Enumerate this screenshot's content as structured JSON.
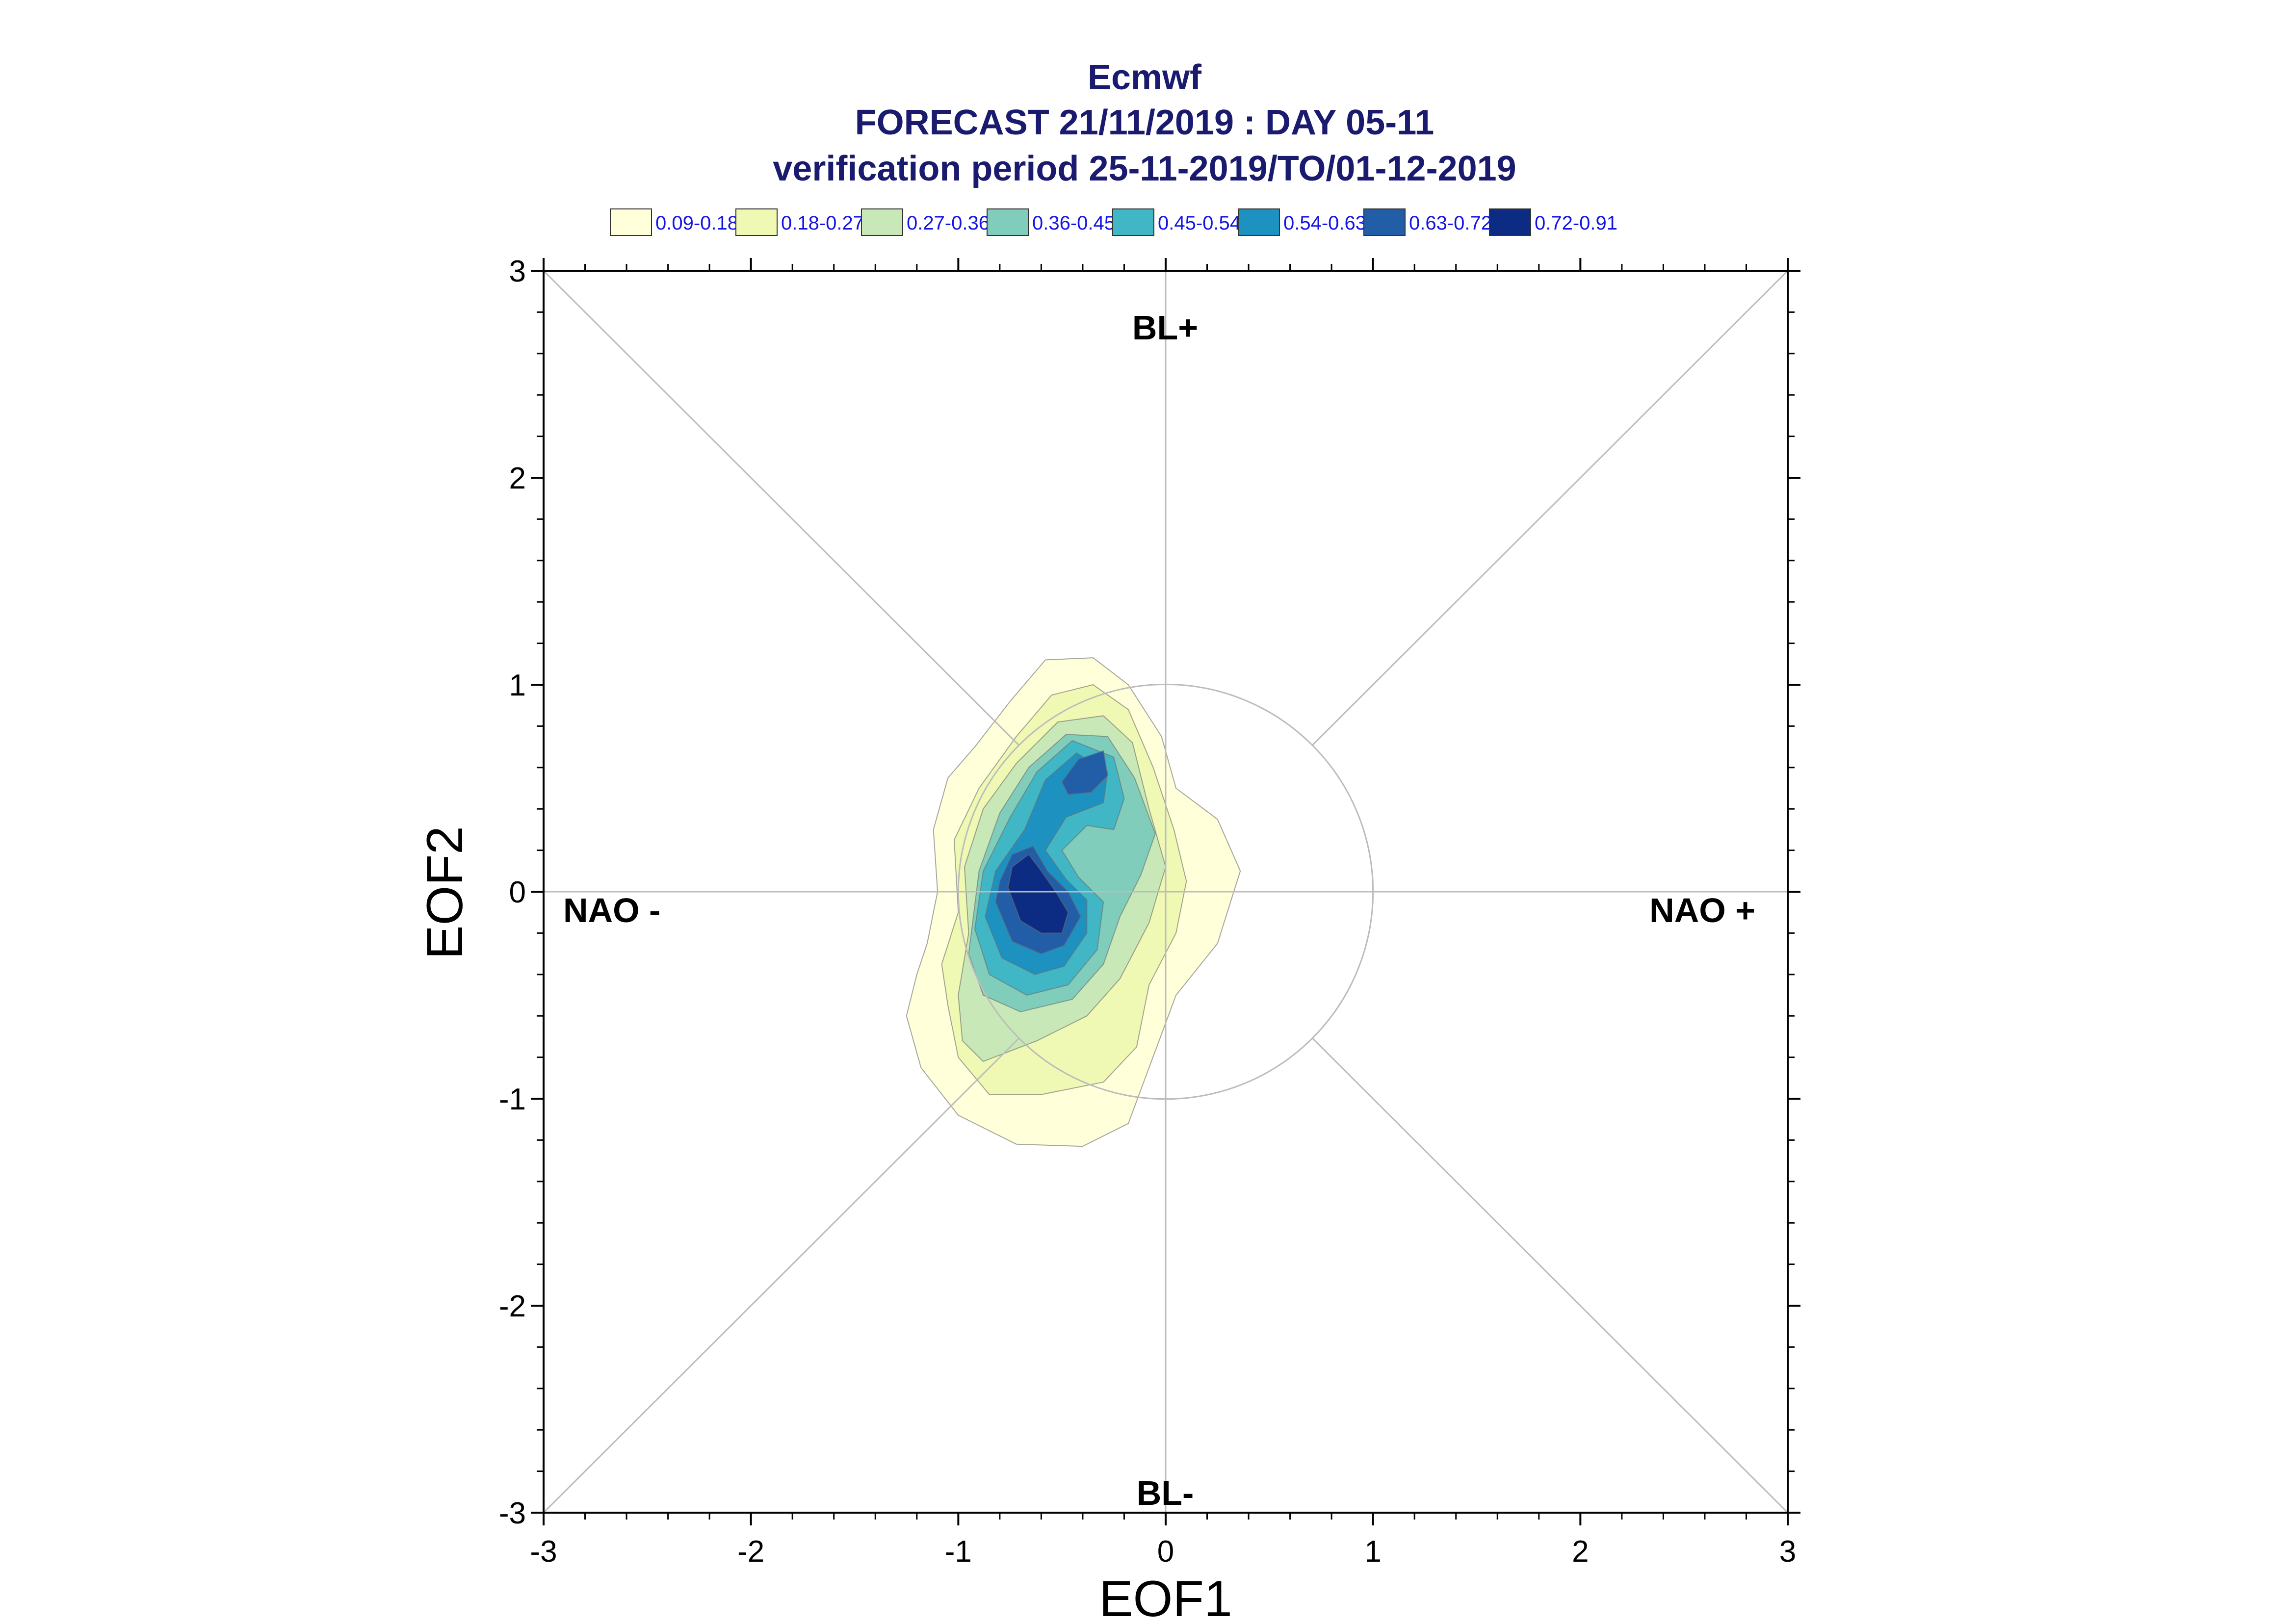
{
  "chart_data": {
    "type": "contour",
    "title": "Ecmwf",
    "subtitle": [
      "FORECAST 21/11/2019 : DAY 05-11",
      "verification period 25-11-2019/TO/01-12-2019"
    ],
    "xlabel": "EOF1",
    "ylabel": "EOF2",
    "xlim": [
      -3,
      3
    ],
    "ylim": [
      -3,
      3
    ],
    "xticks": [
      "-3",
      "-2",
      "-1",
      "0",
      "1",
      "2",
      "3"
    ],
    "yticks": [
      "-3",
      "-2",
      "-1",
      "0",
      "1",
      "2",
      "3"
    ],
    "grid": false,
    "reference_circle_radius": 1,
    "quadrant_labels": {
      "top": "BL+",
      "bottom": "BL-",
      "left": "NAO -",
      "right": "NAO +"
    },
    "legend_position": "top",
    "legend": [
      {
        "label": "0.09-0.18",
        "color": "#ffffd9"
      },
      {
        "label": "0.18-0.27",
        "color": "#eff9b3"
      },
      {
        "label": "0.27-0.36",
        "color": "#c8e9b7"
      },
      {
        "label": "0.36-0.45",
        "color": "#80cdbb"
      },
      {
        "label": "0.45-0.54",
        "color": "#41b6c4"
      },
      {
        "label": "0.54-0.63",
        "color": "#1d91c0"
      },
      {
        "label": "0.63-0.72",
        "color": "#225ea8"
      },
      {
        "label": "0.72-0.91",
        "color": "#0c2c84"
      }
    ],
    "density_levels": [
      {
        "range": "0.09-0.18",
        "polygons": [
          [
            [
              -1.2,
              -0.4
            ],
            [
              -1.25,
              -0.6
            ],
            [
              -1.18,
              -0.85
            ],
            [
              -1.0,
              -1.08
            ],
            [
              -0.72,
              -1.22
            ],
            [
              -0.4,
              -1.23
            ],
            [
              -0.18,
              -1.12
            ],
            [
              -0.08,
              -0.85
            ],
            [
              0.05,
              -0.5
            ],
            [
              0.25,
              -0.25
            ],
            [
              0.36,
              0.1
            ],
            [
              0.25,
              0.35
            ],
            [
              0.05,
              0.5
            ],
            [
              -0.02,
              0.75
            ],
            [
              -0.18,
              1.0
            ],
            [
              -0.35,
              1.13
            ],
            [
              -0.58,
              1.12
            ],
            [
              -0.75,
              0.92
            ],
            [
              -0.92,
              0.7
            ],
            [
              -1.05,
              0.55
            ],
            [
              -1.12,
              0.3
            ],
            [
              -1.1,
              0.0
            ],
            [
              -1.15,
              -0.25
            ]
          ]
        ]
      },
      {
        "range": "0.18-0.27",
        "polygons": [
          [
            [
              -1.05,
              -0.55
            ],
            [
              -1.0,
              -0.8
            ],
            [
              -0.85,
              -0.98
            ],
            [
              -0.6,
              -0.98
            ],
            [
              -0.3,
              -0.92
            ],
            [
              -0.14,
              -0.75
            ],
            [
              -0.08,
              -0.45
            ],
            [
              0.05,
              -0.2
            ],
            [
              0.1,
              0.05
            ],
            [
              0.04,
              0.3
            ],
            [
              -0.06,
              0.6
            ],
            [
              -0.18,
              0.88
            ],
            [
              -0.35,
              1.0
            ],
            [
              -0.55,
              0.95
            ],
            [
              -0.72,
              0.75
            ],
            [
              -0.9,
              0.5
            ],
            [
              -1.02,
              0.25
            ],
            [
              -1.0,
              -0.1
            ],
            [
              -1.08,
              -0.35
            ]
          ]
        ]
      },
      {
        "range": "0.27-0.36",
        "polygons": [
          [
            [
              -1.0,
              -0.5
            ],
            [
              -0.98,
              -0.72
            ],
            [
              -0.88,
              -0.82
            ],
            [
              -0.62,
              -0.72
            ],
            [
              -0.38,
              -0.6
            ],
            [
              -0.22,
              -0.42
            ],
            [
              -0.08,
              -0.15
            ],
            [
              0.0,
              0.12
            ],
            [
              -0.08,
              0.4
            ],
            [
              -0.16,
              0.72
            ],
            [
              -0.3,
              0.85
            ],
            [
              -0.52,
              0.82
            ],
            [
              -0.72,
              0.62
            ],
            [
              -0.88,
              0.4
            ],
            [
              -0.97,
              0.12
            ],
            [
              -0.95,
              -0.2
            ]
          ]
        ]
      },
      {
        "range": "0.36-0.45",
        "polygons": [
          [
            [
              -0.95,
              -0.3
            ],
            [
              -0.88,
              -0.5
            ],
            [
              -0.7,
              -0.58
            ],
            [
              -0.45,
              -0.52
            ],
            [
              -0.3,
              -0.35
            ],
            [
              -0.22,
              -0.12
            ],
            [
              -0.12,
              0.08
            ],
            [
              -0.05,
              0.28
            ],
            [
              -0.15,
              0.55
            ],
            [
              -0.28,
              0.75
            ],
            [
              -0.48,
              0.76
            ],
            [
              -0.66,
              0.6
            ],
            [
              -0.8,
              0.38
            ],
            [
              -0.9,
              0.1
            ]
          ]
        ]
      },
      {
        "range": "0.45-0.54",
        "polygons": [
          [
            [
              -0.92,
              -0.18
            ],
            [
              -0.85,
              -0.4
            ],
            [
              -0.67,
              -0.5
            ],
            [
              -0.47,
              -0.45
            ],
            [
              -0.33,
              -0.28
            ],
            [
              -0.3,
              -0.05
            ],
            [
              -0.42,
              0.07
            ],
            [
              -0.5,
              0.2
            ],
            [
              -0.38,
              0.32
            ],
            [
              -0.25,
              0.3
            ],
            [
              -0.2,
              0.45
            ],
            [
              -0.25,
              0.65
            ],
            [
              -0.45,
              0.73
            ],
            [
              -0.62,
              0.58
            ],
            [
              -0.75,
              0.36
            ],
            [
              -0.88,
              0.1
            ]
          ]
        ]
      },
      {
        "range": "0.54-0.63",
        "polygons": [
          [
            [
              -0.87,
              -0.12
            ],
            [
              -0.79,
              -0.32
            ],
            [
              -0.63,
              -0.4
            ],
            [
              -0.49,
              -0.36
            ],
            [
              -0.38,
              -0.2
            ],
            [
              -0.38,
              -0.04
            ],
            [
              -0.48,
              0.06
            ],
            [
              -0.58,
              0.2
            ],
            [
              -0.48,
              0.36
            ],
            [
              -0.3,
              0.43
            ],
            [
              -0.28,
              0.58
            ],
            [
              -0.43,
              0.67
            ],
            [
              -0.58,
              0.54
            ],
            [
              -0.68,
              0.3
            ],
            [
              -0.82,
              0.1
            ]
          ]
        ]
      },
      {
        "range": "0.63-0.72",
        "polygons": [
          [
            [
              -0.82,
              -0.05
            ],
            [
              -0.74,
              -0.24
            ],
            [
              -0.6,
              -0.3
            ],
            [
              -0.49,
              -0.26
            ],
            [
              -0.41,
              -0.12
            ],
            [
              -0.47,
              0.0
            ],
            [
              -0.57,
              0.1
            ],
            [
              -0.64,
              0.22
            ],
            [
              -0.74,
              0.18
            ],
            [
              -0.8,
              0.05
            ]
          ],
          [
            [
              -0.5,
              0.53
            ],
            [
              -0.42,
              0.64
            ],
            [
              -0.3,
              0.68
            ],
            [
              -0.28,
              0.56
            ],
            [
              -0.36,
              0.48
            ],
            [
              -0.47,
              0.47
            ]
          ]
        ]
      },
      {
        "range": "0.72-0.91",
        "polygons": [
          [
            [
              -0.76,
              0.02
            ],
            [
              -0.7,
              -0.14
            ],
            [
              -0.6,
              -0.2
            ],
            [
              -0.5,
              -0.2
            ],
            [
              -0.47,
              -0.1
            ],
            [
              -0.53,
              0.0
            ],
            [
              -0.6,
              0.1
            ],
            [
              -0.66,
              0.18
            ],
            [
              -0.74,
              0.12
            ]
          ]
        ]
      }
    ]
  }
}
